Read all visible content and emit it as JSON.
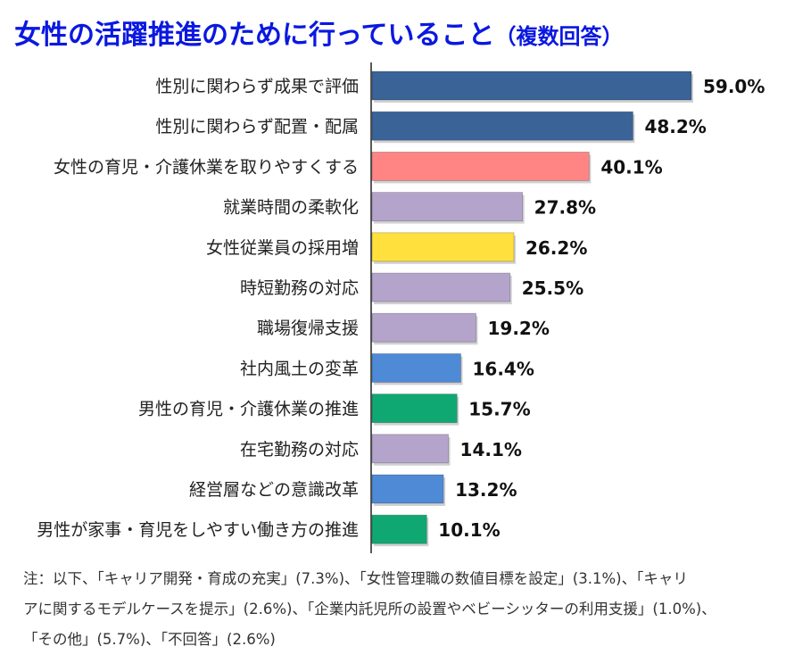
{
  "title": {
    "main": "女性の活躍推進のために行っていること",
    "sub": "（複数回答）"
  },
  "chart_data": {
    "type": "bar",
    "orientation": "horizontal",
    "categories": [
      "性別に関わらず成果で評価",
      "性別に関わらず配置・配属",
      "女性の育児・介護休業を取りやすくする",
      "就業時間の柔軟化",
      "女性従業員の採用増",
      "時短勤務の対応",
      "職場復帰支援",
      "社内風土の変革",
      "男性の育児・介護休業の推進",
      "在宅勤務の対応",
      "経営層などの意識改革",
      "男性が家事・育児をしやすい働き方の推進"
    ],
    "values": [
      59.0,
      48.2,
      40.1,
      27.8,
      26.2,
      25.5,
      19.2,
      16.4,
      15.7,
      14.1,
      13.2,
      10.1
    ],
    "value_labels": [
      "59.0%",
      "48.2%",
      "40.1%",
      "27.8%",
      "26.2%",
      "25.5%",
      "19.2%",
      "16.4%",
      "15.7%",
      "14.1%",
      "13.2%",
      "10.1%"
    ],
    "colors": [
      "#3a6397",
      "#3a6397",
      "#ff8585",
      "#b4a4cc",
      "#ffe03c",
      "#b4a4cc",
      "#b4a4cc",
      "#4f8ad6",
      "#10a872",
      "#b4a4cc",
      "#4f8ad6",
      "#10a872"
    ],
    "xlim": [
      0,
      60
    ],
    "grid": false,
    "legend": false
  },
  "note": [
    "注：以下、「キャリア開発・育成の充実」(7.3%)、「女性管理職の数値目標を設定」(3.1%)、「キャリ",
    "アに関するモデルケースを提示」(2.6%)、「企業内託児所の設置やベビーシッターの利用支援」(1.0%)、",
    "「その他」(5.7%)、「不回答」(2.6%)"
  ]
}
